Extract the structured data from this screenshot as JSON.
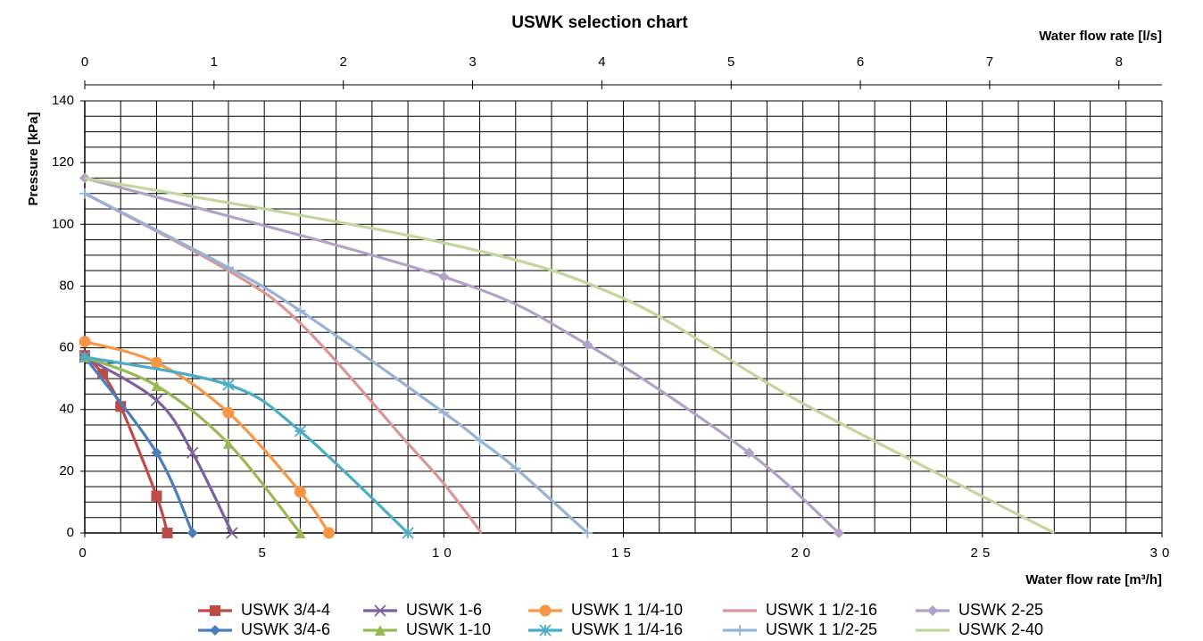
{
  "chart_data": {
    "type": "line",
    "title": "USWK selection chart",
    "xlabel": "Water flow rate [m³/h]",
    "x2label": "Water flow rate [l/s]",
    "ylabel": "Pressure [kPa]",
    "xlim": [
      0,
      30
    ],
    "xticks": [
      0,
      5,
      10,
      15,
      20,
      25,
      30
    ],
    "x2lim": [
      0,
      8.333
    ],
    "x2ticks": [
      0,
      1,
      2,
      3,
      4,
      5,
      6,
      7,
      8
    ],
    "ylim": [
      0,
      140
    ],
    "yticks": [
      0,
      20,
      40,
      60,
      80,
      100,
      120,
      140
    ],
    "grid": true,
    "xgrid_step": 1,
    "ygrid_step": 5,
    "legend": "bottom",
    "series": [
      {
        "name": "USWK 3/4-4",
        "color": "#be4b48",
        "marker": "square",
        "x": [
          0,
          0.5,
          1,
          2,
          2.3
        ],
        "values": [
          57.5,
          51.5,
          41,
          12,
          0
        ]
      },
      {
        "name": "USWK 3/4-6",
        "color": "#4a7ebb",
        "marker": "diamond",
        "x": [
          0,
          2,
          3
        ],
        "values": [
          57,
          26,
          0
        ]
      },
      {
        "name": "USWK 1-6",
        "color": "#7d60a0",
        "marker": "x",
        "x": [
          0,
          2,
          3,
          4.1
        ],
        "values": [
          57,
          43,
          26,
          0
        ]
      },
      {
        "name": "USWK 1-10",
        "color": "#98b954",
        "marker": "triangle",
        "x": [
          0,
          2,
          4,
          6
        ],
        "values": [
          57,
          47.7,
          29,
          0
        ]
      },
      {
        "name": "USWK 1 1/4-10",
        "color": "#f79646",
        "marker": "circle",
        "x": [
          0,
          2,
          4,
          6,
          6.8
        ],
        "values": [
          62,
          55.2,
          39,
          13.3,
          0
        ]
      },
      {
        "name": "USWK 1 1/4-16",
        "color": "#4bacc6",
        "marker": "asterisk",
        "x": [
          0,
          4,
          6,
          9
        ],
        "values": [
          57,
          48,
          33,
          0
        ]
      },
      {
        "name": "USWK 1 1/2-16",
        "color": "#d99694",
        "marker": "none",
        "x": [
          0,
          4,
          6,
          9,
          10,
          11.05
        ],
        "values": [
          110,
          85,
          68,
          29,
          16,
          0
        ]
      },
      {
        "name": "USWK 1 1/2-25",
        "color": "#95b3d7",
        "marker": "plus",
        "x": [
          0,
          4,
          6,
          10,
          11,
          12,
          14
        ],
        "values": [
          110,
          86,
          72,
          39,
          30,
          21,
          0
        ]
      },
      {
        "name": "USWK 2-25",
        "color": "#b3a2c7",
        "marker": "diamond",
        "x": [
          0,
          10,
          14,
          18.5,
          21
        ],
        "values": [
          115,
          83,
          61,
          26,
          0
        ]
      },
      {
        "name": "USWK 2-40",
        "color": "#c3d69b",
        "marker": "none",
        "x": [
          0,
          10,
          15,
          20,
          27
        ],
        "values": [
          115,
          94,
          76,
          42,
          0
        ]
      }
    ]
  }
}
